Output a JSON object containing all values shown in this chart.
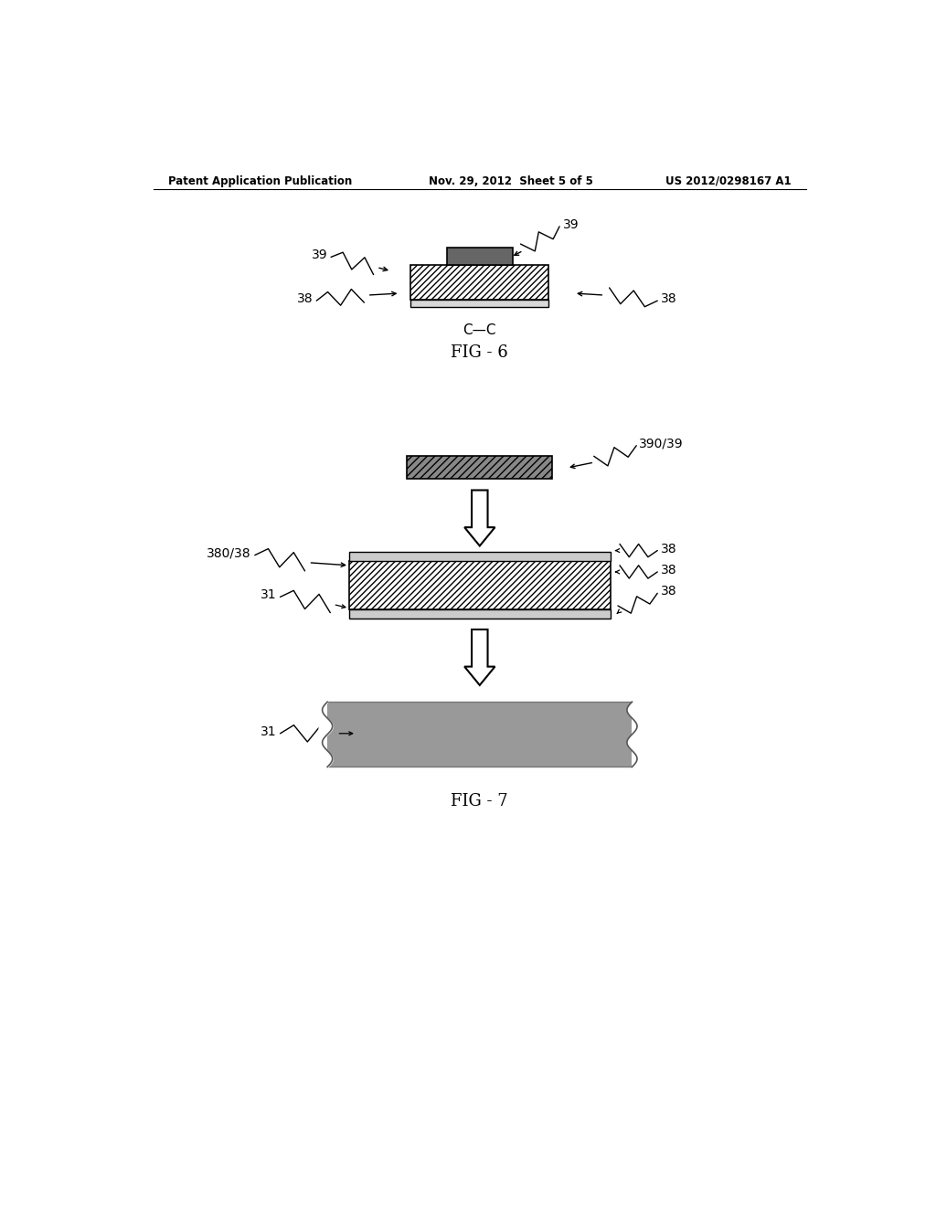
{
  "bg_color": "#ffffff",
  "header_left": "Patent Application Publication",
  "header_center": "Nov. 29, 2012  Sheet 5 of 5",
  "header_right": "US 2012/0298167 A1",
  "fig6_label": "FIG - 6",
  "fig6_sublabel": "C—C",
  "fig7_label": "FIG - 7",
  "hatch_color": "#000000",
  "mid_hatch_color": "#ffffff",
  "top_small_color": "#888888",
  "bot_rect_color": "#999999"
}
